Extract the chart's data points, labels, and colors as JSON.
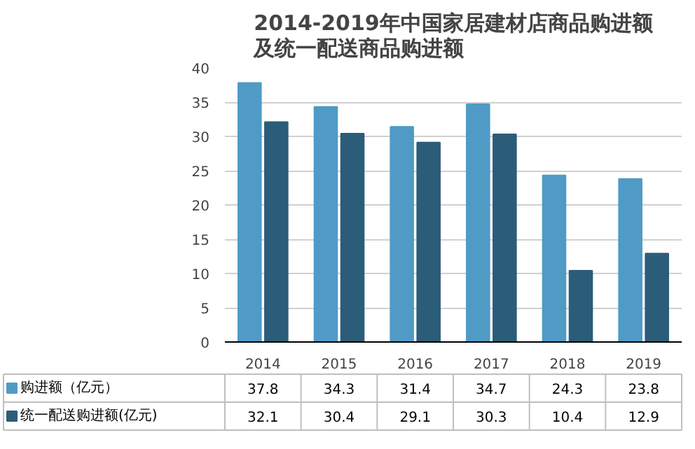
{
  "chart_data": {
    "type": "bar",
    "title": "2014-2019年中国家居建材店商品购进额及统一配送商品购进额",
    "categories": [
      "2014",
      "2015",
      "2016",
      "2017",
      "2018",
      "2019"
    ],
    "series": [
      {
        "name": "购进额（亿元）",
        "color": "#4f9bc6",
        "values": [
          37.8,
          34.3,
          31.4,
          34.7,
          24.3,
          23.8
        ]
      },
      {
        "name": "统一配送购进额(亿元)",
        "color": "#2c5d78",
        "values": [
          32.1,
          30.4,
          29.1,
          30.3,
          10.4,
          12.9
        ]
      }
    ],
    "ylim": [
      0,
      40
    ],
    "yticks": [
      0,
      5,
      10,
      15,
      20,
      25,
      30,
      35,
      40
    ],
    "grid": "y",
    "legend": "bottom",
    "data_labels": true
  }
}
